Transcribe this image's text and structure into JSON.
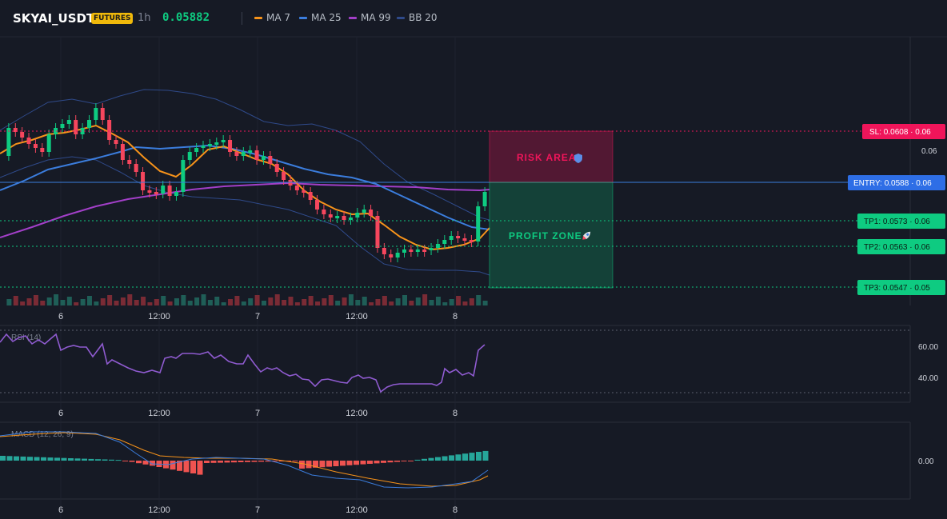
{
  "header": {
    "symbol": "SKYAI_USDT",
    "badge": "FUTURES",
    "timeframe": "1h",
    "price": "0.05882",
    "indicators": [
      {
        "name": "MA 7",
        "color": "#f7931a"
      },
      {
        "name": "MA 25",
        "color": "#3b7ddd"
      },
      {
        "name": "MA 99",
        "color": "#a23fc8"
      },
      {
        "name": "BB 20",
        "color": "#2f4a8a"
      }
    ]
  },
  "colors": {
    "up": "#0ecb81",
    "down": "#f6465d",
    "entry": "#3b7ddd",
    "sl": "#f0155a",
    "tp": "#0ecb81"
  },
  "time_axis": [
    "6",
    "12:00",
    "7",
    "12:00",
    "8"
  ],
  "price_axis": {
    "right_tick": "0.06"
  },
  "levels": {
    "sl": {
      "label": "SL: 0.0608 · 0.06"
    },
    "entry": {
      "label": "ENTRY: 0.0588 · 0.06"
    },
    "tp1": {
      "label": "TP1: 0.0573 · 0.06"
    },
    "tp2": {
      "label": "TP2: 0.0563 · 0.06"
    },
    "tp3": {
      "label": "TP3: 0.0547 · 0.05"
    }
  },
  "zones": {
    "risk": "RISK AREA",
    "risk_icon": "shield-icon",
    "profit": "PROFIT ZONE",
    "profit_icon": "rocket-icon"
  },
  "rsi": {
    "title": "RSI (14)",
    "ticks": [
      "60.00",
      "40.00"
    ]
  },
  "macd": {
    "title": "MACD (12, 26, 9)",
    "ticks": [
      "0.00"
    ]
  }
}
